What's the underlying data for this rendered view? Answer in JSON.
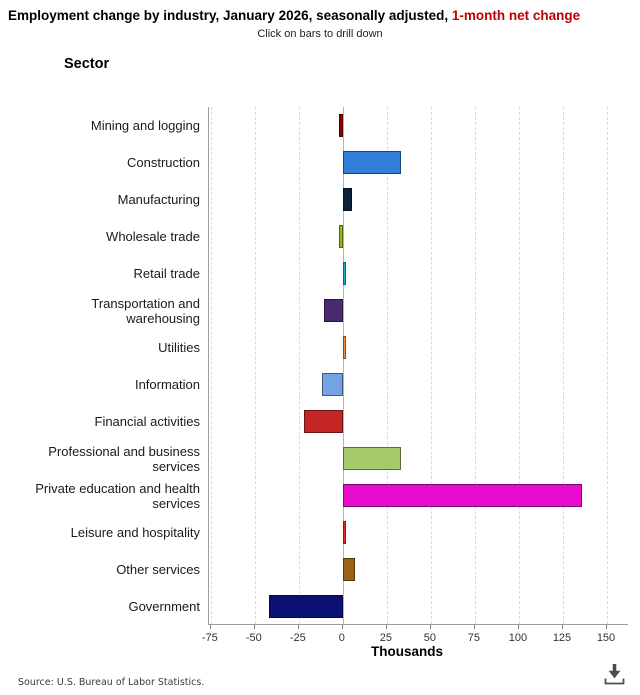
{
  "header": {
    "title_main": "Employment change by industry, January 2026, seasonally adjusted, ",
    "title_highlight": "1-month net change",
    "highlight_color": "#c00000",
    "subtitle": "Click on bars to drill down"
  },
  "sector_label": "Sector",
  "chart_data": {
    "type": "bar",
    "orientation": "horizontal",
    "title": "Employment change by industry, January 2026, seasonally adjusted, 1-month net change",
    "xlabel": "Thousands",
    "ylabel": "Sector",
    "unit": "thousands",
    "xlim": [
      -76,
      162.5
    ],
    "xticks": [
      -75,
      -50,
      -25,
      0,
      25,
      50,
      75,
      100,
      125,
      150
    ],
    "grid": "vertical-dashed",
    "categories": [
      "Mining and logging",
      "Construction",
      "Manufacturing",
      "Wholesale trade",
      "Retail trade",
      "Transportation and\nwarehousing",
      "Utilities",
      "Information",
      "Financial activities",
      "Professional and business\nservices",
      "Private education and health\nservices",
      "Leisure and hospitality",
      "Other services",
      "Government"
    ],
    "values": [
      -2,
      33,
      5,
      -2,
      2,
      -11,
      2,
      -12,
      -22,
      33,
      136,
      2,
      7,
      -42
    ],
    "colors": [
      "#910000",
      "#2f7ed8",
      "#0d233a",
      "#8bbc21",
      "#1aadce",
      "#492970",
      "#f28f43",
      "#77a1e5",
      "#c42525",
      "#a6c96a",
      "#e80bcd",
      "#ee2c2c",
      "#9a6313",
      "#0a1173"
    ],
    "legend": "none"
  },
  "footer": {
    "source": "Source: U.S. Bureau of Labor Statistics."
  },
  "icons": {
    "download": "download-icon",
    "download_color": "#4d4d4d"
  }
}
